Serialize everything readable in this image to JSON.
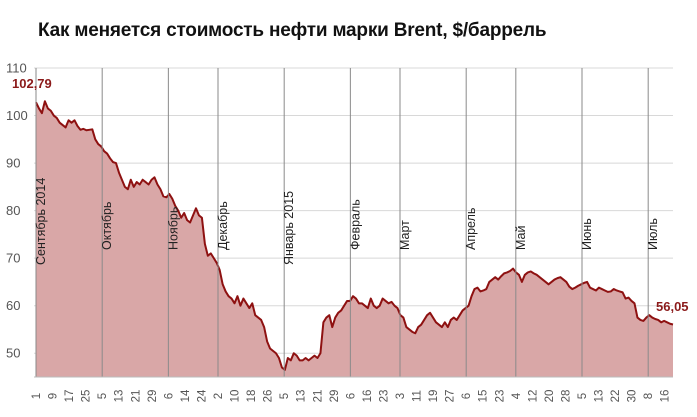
{
  "chart_data": {
    "type": "area",
    "title": "Как меняется стоимость нефти марки Brent, $/баррель",
    "ylim": [
      45,
      110
    ],
    "yticks": [
      50,
      60,
      70,
      80,
      90,
      100,
      110
    ],
    "x_tick_labels": [
      "1",
      "9",
      "17",
      "25",
      "5",
      "13",
      "21",
      "29",
      "6",
      "14",
      "24",
      "2",
      "10",
      "18",
      "26",
      "5",
      "13",
      "21",
      "29",
      "6",
      "16",
      "23",
      "3",
      "11",
      "19",
      "27",
      "6",
      "15",
      "23",
      "4",
      "12",
      "20",
      "28",
      "5",
      "13",
      "22",
      "30",
      "8",
      "16"
    ],
    "month_markers": [
      {
        "label": "Сентябрь 2014",
        "tick_index": 0
      },
      {
        "label": "Октябрь",
        "tick_index": 4
      },
      {
        "label": "Ноябрь",
        "tick_index": 8
      },
      {
        "label": "Декабрь",
        "tick_index": 11
      },
      {
        "label": "Январь 2015",
        "tick_index": 15
      },
      {
        "label": "Февраль",
        "tick_index": 19
      },
      {
        "label": "Март",
        "tick_index": 22
      },
      {
        "label": "Апрель",
        "tick_index": 26
      },
      {
        "label": "Май",
        "tick_index": 29
      },
      {
        "label": "Июнь",
        "tick_index": 33
      },
      {
        "label": "Июль",
        "tick_index": 37
      }
    ],
    "data_labels": {
      "first": "102,79",
      "last": "56,05"
    },
    "series": [
      {
        "values": [
          102.79,
          101.5,
          100.5,
          103.0,
          101.5,
          101.0,
          100.0,
          99.5,
          98.5,
          98.0,
          97.5,
          99.0,
          98.5,
          99.0,
          97.8,
          97.0,
          97.2,
          96.9,
          97.0,
          97.1,
          95.0,
          94.0,
          93.5,
          92.5,
          92.0,
          91.0,
          90.2,
          90.0,
          88.0,
          86.5,
          85.0,
          84.5,
          86.5,
          85.0,
          86.0,
          85.5,
          86.5,
          86.0,
          85.5,
          86.5,
          87.0,
          85.5,
          84.5,
          83.0,
          82.8,
          83.5,
          82.5,
          81.0,
          80.0,
          78.5,
          79.5,
          78.0,
          77.5,
          79.0,
          80.5,
          79.0,
          78.5,
          73.0,
          70.5,
          71.0,
          70.0,
          69.0,
          67.5,
          64.5,
          63.0,
          62.0,
          61.5,
          60.5,
          62.0,
          60.0,
          61.5,
          60.5,
          59.5,
          60.5,
          58.0,
          57.5,
          57.0,
          55.5,
          52.5,
          51.0,
          50.5,
          50.0,
          49.0,
          47.0,
          46.5,
          49.0,
          48.5,
          50.0,
          49.5,
          48.5,
          48.5,
          49.0,
          48.5,
          49.0,
          49.5,
          49.0,
          50.0,
          56.5,
          57.5,
          58.0,
          55.5,
          57.5,
          58.5,
          59.0,
          60.0,
          61.0,
          61.0,
          62.0,
          61.5,
          60.5,
          60.5,
          60.0,
          59.5,
          61.5,
          60.0,
          59.5,
          60.0,
          61.5,
          61.0,
          60.5,
          60.8,
          60.0,
          59.5,
          58.0,
          57.5,
          55.5,
          55.0,
          54.5,
          54.2,
          55.5,
          56.0,
          57.0,
          58.0,
          58.5,
          57.5,
          56.5,
          56.0,
          55.5,
          56.5,
          55.5,
          57.0,
          57.5,
          57.0,
          58.0,
          59.0,
          59.5,
          60.0,
          62.0,
          63.5,
          63.8,
          63.0,
          63.2,
          63.5,
          65.0,
          65.5,
          66.0,
          65.5,
          66.2,
          66.8,
          67.0,
          67.3,
          67.8,
          67.0,
          66.5,
          65.0,
          66.5,
          67.0,
          67.2,
          66.8,
          66.5,
          66.0,
          65.5,
          65.0,
          64.5,
          65.0,
          65.5,
          65.8,
          66.0,
          65.5,
          65.0,
          64.0,
          63.5,
          63.8,
          64.2,
          64.5,
          64.8,
          65.0,
          63.8,
          63.5,
          63.2,
          63.8,
          63.5,
          63.2,
          62.9,
          63.0,
          63.5,
          63.2,
          63.0,
          62.8,
          61.5,
          61.7,
          61.0,
          60.5,
          57.5,
          57.0,
          56.8,
          57.5,
          58.0,
          57.5,
          57.2,
          57.0,
          56.5,
          56.8,
          56.5,
          56.2,
          56.05
        ]
      }
    ]
  }
}
